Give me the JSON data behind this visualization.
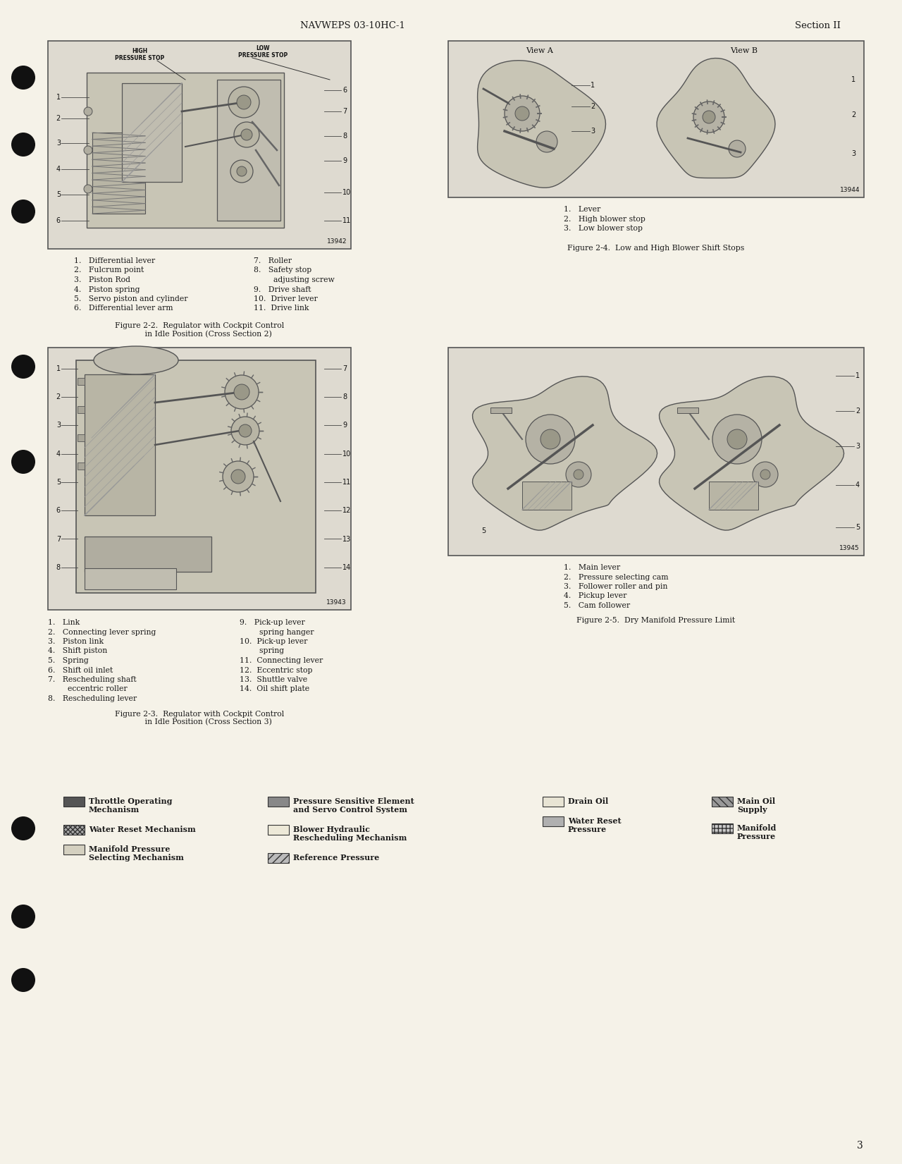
{
  "page_bg_color": "#f5f2e8",
  "header_text_left": "NAVWEPS 03-10HC-1",
  "header_text_right": "Section II",
  "page_number": "3",
  "fig2_id": "13942",
  "fig3_id": "13943",
  "fig4_id": "13944",
  "fig5_id": "13945",
  "fig2_left_parts": [
    "1.   Differential lever",
    "2.   Fulcrum point",
    "3.   Piston Rod",
    "4.   Piston spring",
    "5.   Servo piston and cylinder",
    "6.   Differential lever arm"
  ],
  "fig2_right_parts": [
    "7.   Roller",
    "8.   Safety stop",
    "        adjusting screw",
    "9.   Drive shaft",
    "10.  Driver lever",
    "11.  Drive link"
  ],
  "fig2_caption": "Figure 2-2.  Regulator with Cockpit Control\n       in Idle Position (Cross Section 2)",
  "fig3_left_parts": [
    "1.   Link",
    "2.   Connecting lever spring",
    "3.   Piston link",
    "4.   Shift piston",
    "5.   Spring",
    "6.   Shift oil inlet",
    "7.   Rescheduling shaft",
    "        eccentric roller",
    "8.   Rescheduling lever"
  ],
  "fig3_right_parts": [
    "9.   Pick-up lever",
    "        spring hanger",
    "10.  Pick-up lever",
    "        spring",
    "11.  Connecting lever",
    "12.  Eccentric stop",
    "13.  Shuttle valve",
    "14.  Oil shift plate"
  ],
  "fig3_caption": "Figure 2-3.  Regulator with Cockpit Control\n       in Idle Position (Cross Section 3)",
  "fig4_parts": [
    "1.   Lever",
    "2.   High blower stop",
    "3.   Low blower stop"
  ],
  "fig4_caption": "Figure 2-4.  Low and High Blower Shift Stops",
  "fig5_parts": [
    "1.   Main lever",
    "2.   Pressure selecting cam",
    "3.   Follower roller and pin",
    "4.   Pickup lever",
    "5.   Cam follower"
  ],
  "fig5_caption": "Figure 2-5.  Dry Manifold Pressure Limit",
  "legend_col1": [
    {
      "swatch": "dark_gray",
      "text": "Throttle Operating\nMechanism"
    },
    {
      "swatch": "crosshatch_dense",
      "text": "Water Reset Mechanism"
    },
    {
      "swatch": "light_gray",
      "text": "Manifold Pressure\nSelecting Mechanism"
    }
  ],
  "legend_col2": [
    {
      "swatch": "medium_gray",
      "text": "Pressure Sensitive Element\nand Servo Control System"
    },
    {
      "swatch": "white_outline",
      "text": "Blower Hydraulic\nRescheduling Mechanism"
    },
    {
      "swatch": "diagonal_hatch",
      "text": "Reference Pressure"
    }
  ],
  "legend_col3": [
    {
      "swatch": "white_outline2",
      "text": "Drain Oil"
    },
    {
      "swatch": "med_gray2",
      "text": "Water Reset\nPressure"
    }
  ],
  "legend_col4": [
    {
      "swatch": "back_diag",
      "text": "Main Oil\nSupply"
    },
    {
      "swatch": "fine_hatch",
      "text": "Manifold\nPressure"
    }
  ],
  "text_color": "#1a1a1a",
  "dot_positions": [
    110,
    205,
    300,
    520,
    655,
    1175,
    1300,
    1390
  ]
}
